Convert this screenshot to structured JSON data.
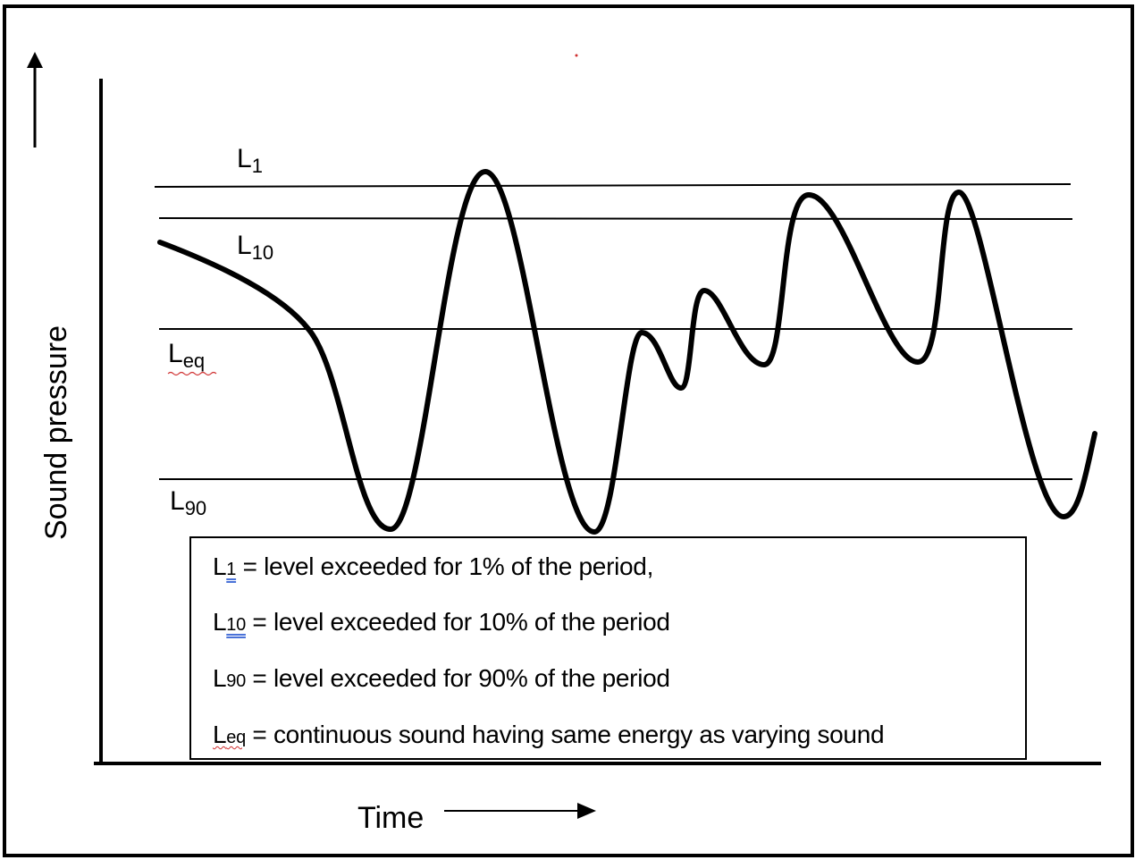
{
  "axes": {
    "y_title": "Sound pressure",
    "x_title": "Time"
  },
  "level_lines": [
    {
      "key": "L1",
      "base": "L",
      "sub": "1"
    },
    {
      "key": "L10",
      "base": "L",
      "sub": "10"
    },
    {
      "key": "Leq",
      "base": "L",
      "sub": "eq"
    },
    {
      "key": "L90",
      "base": "L",
      "sub": "90"
    }
  ],
  "legend": [
    {
      "base": "L",
      "sub": "1",
      "text": " = level exceeded for 1% of the period,"
    },
    {
      "base": "L",
      "sub": "10",
      "text": " = level exceeded for 10% of the period"
    },
    {
      "base": "L",
      "sub": "90",
      "text": " = level exceeded for 90% of the period"
    },
    {
      "base": "L",
      "sub": "eq",
      "text": " = continuous sound having same energy as varying sound"
    }
  ],
  "colors": {
    "ink": "#000000",
    "spell_underline_blue": "#4a72d8",
    "spell_underline_red": "#d03030"
  }
}
